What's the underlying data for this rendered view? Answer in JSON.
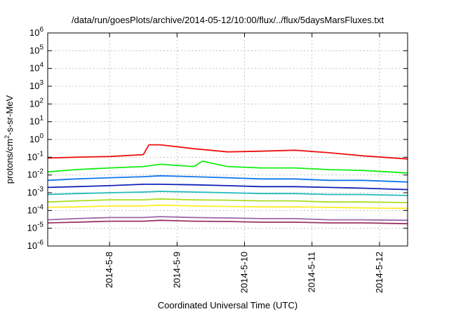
{
  "chart_data": {
    "type": "line",
    "title": "/data/run/goesPlots/archive/2014-05-12/10:00/flux/../flux/5daysMarsFluxes.txt",
    "xlabel": "Coordinated Universal Time (UTC)",
    "ylabel": "protons/cm2-s-sr-MeV",
    "y_scale": "log",
    "ylim": [
      1e-06,
      1000000.0
    ],
    "xlim": [
      "2014-05-07 02:00",
      "2014-05-12 10:00"
    ],
    "x_ticks": [
      "2014-5-8",
      "2014-5-9",
      "2014-5-10",
      "2014-5-11",
      "2014-5-12"
    ],
    "y_ticks": [
      {
        "base": "10",
        "exp": "-6",
        "value": 1e-06
      },
      {
        "base": "10",
        "exp": "-5",
        "value": 1e-05
      },
      {
        "base": "10",
        "exp": "-4",
        "value": 0.0001
      },
      {
        "base": "10",
        "exp": "-3",
        "value": 0.001
      },
      {
        "base": "10",
        "exp": "-2",
        "value": 0.01
      },
      {
        "base": "10",
        "exp": "-1",
        "value": 0.1
      },
      {
        "base": "10",
        "exp": "0",
        "value": 1
      },
      {
        "base": "10",
        "exp": "1",
        "value": 10
      },
      {
        "base": "10",
        "exp": "2",
        "value": 100
      },
      {
        "base": "10",
        "exp": "3",
        "value": 1000
      },
      {
        "base": "10",
        "exp": "4",
        "value": 10000
      },
      {
        "base": "10",
        "exp": "5",
        "value": 100000
      },
      {
        "base": "10",
        "exp": "6",
        "value": 1000000
      }
    ],
    "grid": true,
    "legend": "none",
    "series": [
      {
        "color": "#ee1111",
        "points": [
          [
            "2014-05-07 02:00",
            0.09
          ],
          [
            "2014-05-07 12:00",
            0.1
          ],
          [
            "2014-05-08 00:00",
            0.11
          ],
          [
            "2014-05-08 12:00",
            0.14
          ],
          [
            "2014-05-08 14:00",
            0.5
          ],
          [
            "2014-05-08 18:00",
            0.5
          ],
          [
            "2014-05-09 06:00",
            0.3
          ],
          [
            "2014-05-09 18:00",
            0.2
          ],
          [
            "2014-05-10 06:00",
            0.22
          ],
          [
            "2014-05-10 18:00",
            0.25
          ],
          [
            "2014-05-11 06:00",
            0.18
          ],
          [
            "2014-05-11 18:00",
            0.12
          ],
          [
            "2014-05-12 10:00",
            0.08
          ]
        ]
      },
      {
        "color": "#11ee11",
        "points": [
          [
            "2014-05-07 02:00",
            0.015
          ],
          [
            "2014-05-07 12:00",
            0.02
          ],
          [
            "2014-05-08 00:00",
            0.025
          ],
          [
            "2014-05-08 12:00",
            0.03
          ],
          [
            "2014-05-08 18:00",
            0.04
          ],
          [
            "2014-05-09 06:00",
            0.03
          ],
          [
            "2014-05-09 09:00",
            0.06
          ],
          [
            "2014-05-09 18:00",
            0.03
          ],
          [
            "2014-05-10 06:00",
            0.025
          ],
          [
            "2014-05-10 18:00",
            0.025
          ],
          [
            "2014-05-11 06:00",
            0.02
          ],
          [
            "2014-05-11 18:00",
            0.018
          ],
          [
            "2014-05-12 10:00",
            0.013
          ]
        ]
      },
      {
        "color": "#1177ee",
        "points": [
          [
            "2014-05-07 02:00",
            0.005
          ],
          [
            "2014-05-07 12:00",
            0.006
          ],
          [
            "2014-05-08 00:00",
            0.007
          ],
          [
            "2014-05-08 12:00",
            0.008
          ],
          [
            "2014-05-08 18:00",
            0.009
          ],
          [
            "2014-05-09 06:00",
            0.008
          ],
          [
            "2014-05-09 18:00",
            0.007
          ],
          [
            "2014-05-10 06:00",
            0.006
          ],
          [
            "2014-05-10 18:00",
            0.006
          ],
          [
            "2014-05-11 06:00",
            0.005
          ],
          [
            "2014-05-11 18:00",
            0.005
          ],
          [
            "2014-05-12 10:00",
            0.004
          ]
        ]
      },
      {
        "color": "#1122bb",
        "points": [
          [
            "2014-05-07 02:00",
            0.002
          ],
          [
            "2014-05-07 12:00",
            0.0022
          ],
          [
            "2014-05-08 00:00",
            0.0025
          ],
          [
            "2014-05-08 12:00",
            0.003
          ],
          [
            "2014-05-08 18:00",
            0.003
          ],
          [
            "2014-05-09 06:00",
            0.0028
          ],
          [
            "2014-05-09 18:00",
            0.0025
          ],
          [
            "2014-05-10 06:00",
            0.0022
          ],
          [
            "2014-05-10 18:00",
            0.0022
          ],
          [
            "2014-05-11 06:00",
            0.002
          ],
          [
            "2014-05-11 18:00",
            0.0018
          ],
          [
            "2014-05-12 10:00",
            0.0015
          ]
        ]
      },
      {
        "color": "#22bbbb",
        "points": [
          [
            "2014-05-07 02:00",
            0.0008
          ],
          [
            "2014-05-07 12:00",
            0.0009
          ],
          [
            "2014-05-08 00:00",
            0.001
          ],
          [
            "2014-05-08 12:00",
            0.0011
          ],
          [
            "2014-05-08 18:00",
            0.0012
          ],
          [
            "2014-05-09 06:00",
            0.0011
          ],
          [
            "2014-05-09 18:00",
            0.001
          ],
          [
            "2014-05-10 06:00",
            0.0009
          ],
          [
            "2014-05-10 18:00",
            0.0009
          ],
          [
            "2014-05-11 06:00",
            0.0008
          ],
          [
            "2014-05-11 18:00",
            0.0008
          ],
          [
            "2014-05-12 10:00",
            0.0007
          ]
        ]
      },
      {
        "color": "#aadd22",
        "points": [
          [
            "2014-05-07 02:00",
            0.0003
          ],
          [
            "2014-05-07 12:00",
            0.00035
          ],
          [
            "2014-05-08 00:00",
            0.0004
          ],
          [
            "2014-05-08 12:00",
            0.0004
          ],
          [
            "2014-05-08 18:00",
            0.00045
          ],
          [
            "2014-05-09 06:00",
            0.0004
          ],
          [
            "2014-05-09 18:00",
            0.00038
          ],
          [
            "2014-05-10 06:00",
            0.00035
          ],
          [
            "2014-05-10 18:00",
            0.00035
          ],
          [
            "2014-05-11 06:00",
            0.0003
          ],
          [
            "2014-05-11 18:00",
            0.0003
          ],
          [
            "2014-05-12 10:00",
            0.00028
          ]
        ]
      },
      {
        "color": "#ffee22",
        "points": [
          [
            "2014-05-07 02:00",
            0.00015
          ],
          [
            "2014-05-07 12:00",
            0.00016
          ],
          [
            "2014-05-08 00:00",
            0.00018
          ],
          [
            "2014-05-08 12:00",
            0.00018
          ],
          [
            "2014-05-08 18:00",
            0.0002
          ],
          [
            "2014-05-09 06:00",
            0.00018
          ],
          [
            "2014-05-09 18:00",
            0.00017
          ],
          [
            "2014-05-10 06:00",
            0.00016
          ],
          [
            "2014-05-10 18:00",
            0.00016
          ],
          [
            "2014-05-11 06:00",
            0.00015
          ],
          [
            "2014-05-11 18:00",
            0.00014
          ],
          [
            "2014-05-12 10:00",
            0.00013
          ]
        ]
      },
      {
        "color": "#9966aa",
        "points": [
          [
            "2014-05-07 02:00",
            3e-05
          ],
          [
            "2014-05-07 12:00",
            3.5e-05
          ],
          [
            "2014-05-08 00:00",
            4e-05
          ],
          [
            "2014-05-08 12:00",
            4e-05
          ],
          [
            "2014-05-08 18:00",
            4.5e-05
          ],
          [
            "2014-05-09 06:00",
            4e-05
          ],
          [
            "2014-05-09 18:00",
            3.8e-05
          ],
          [
            "2014-05-10 06:00",
            3.5e-05
          ],
          [
            "2014-05-10 18:00",
            3.5e-05
          ],
          [
            "2014-05-11 06:00",
            3e-05
          ],
          [
            "2014-05-11 18:00",
            3e-05
          ],
          [
            "2014-05-12 10:00",
            2.8e-05
          ]
        ]
      },
      {
        "color": "#993366",
        "points": [
          [
            "2014-05-07 02:00",
            2e-05
          ],
          [
            "2014-05-07 12:00",
            2.2e-05
          ],
          [
            "2014-05-08 00:00",
            2.5e-05
          ],
          [
            "2014-05-08 12:00",
            2.5e-05
          ],
          [
            "2014-05-08 18:00",
            2.8e-05
          ],
          [
            "2014-05-09 06:00",
            2.5e-05
          ],
          [
            "2014-05-09 18:00",
            2.4e-05
          ],
          [
            "2014-05-10 06:00",
            2.2e-05
          ],
          [
            "2014-05-10 18:00",
            2.2e-05
          ],
          [
            "2014-05-11 06:00",
            2e-05
          ],
          [
            "2014-05-11 18:00",
            2e-05
          ],
          [
            "2014-05-12 10:00",
            1.8e-05
          ]
        ]
      }
    ]
  }
}
